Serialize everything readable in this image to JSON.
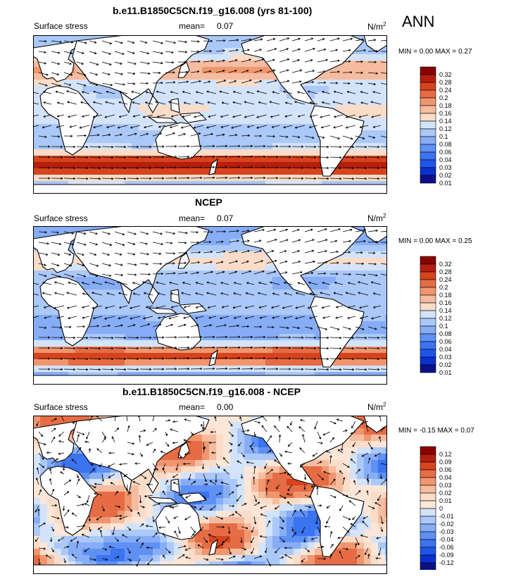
{
  "figure": {
    "season": "ANN",
    "units": "N/m",
    "units_exp": "2"
  },
  "colors": {
    "pos_scale": [
      "#0c0f86",
      "#0a2fd2",
      "#1f55ea",
      "#3b73f0",
      "#5f90f4",
      "#86adf6",
      "#aac8f8",
      "#d3e3fa",
      "#fadcc8",
      "#f6bca0",
      "#f0966f",
      "#e56c45",
      "#d5441e",
      "#b61e0e",
      "#8a0000"
    ],
    "diff_scale": [
      "#0c0f86",
      "#0a2fd2",
      "#1f55ea",
      "#3b73f0",
      "#5f90f4",
      "#86adf6",
      "#aac8f8",
      "#d3e3fa",
      "#fbe6d7",
      "#fadcc8",
      "#f6bca0",
      "#f0966f",
      "#e56c45",
      "#d5441e",
      "#b61e0e",
      "#8a0000"
    ],
    "land": "#ffffff",
    "coast": "#000000",
    "arrow": "#000000"
  },
  "panels": [
    {
      "title": "b.e11.B1850C5CN.f19_g16.008 (yrs 81-100)",
      "variable": "Surface stress",
      "mean_label": "mean=",
      "mean_value": "0.07",
      "min_label": "MIN =",
      "min_value": "0.00",
      "max_label": "MAX =",
      "max_value": "0.27",
      "colorbar_labels": [
        "0.32",
        "0.28",
        "0.24",
        "0.2",
        "0.18",
        "0.16",
        "0.14",
        "0.12",
        "0.1",
        "0.08",
        "0.06",
        "0.04",
        "0.03",
        "0.02",
        "0.01"
      ]
    },
    {
      "title": "NCEP",
      "variable": "Surface stress",
      "mean_label": "mean=",
      "mean_value": "0.07",
      "min_label": "MIN =",
      "min_value": "0.00",
      "max_label": "MAX =",
      "max_value": "0.25",
      "colorbar_labels": [
        "0.32",
        "0.28",
        "0.24",
        "0.2",
        "0.18",
        "0.16",
        "0.14",
        "0.12",
        "0.1",
        "0.08",
        "0.06",
        "0.04",
        "0.03",
        "0.02",
        "0.01"
      ]
    },
    {
      "title": "b.e11.B1850C5CN.f19_g16.008 - NCEP",
      "variable": "Surface stress",
      "mean_label": "mean=",
      "mean_value": "0.00",
      "min_label": "MIN =",
      "min_value": "-0.15",
      "max_label": "MAX =",
      "max_value": "0.07",
      "colorbar_labels": [
        "0.12",
        "0.09",
        "0.06",
        "0.04",
        "0.03",
        "0.02",
        "0.01",
        "0",
        "-0.01",
        "-0.02",
        "-0.03",
        "-0.04",
        "-0.06",
        "-0.09",
        "-0.12"
      ]
    }
  ],
  "chart_data": [
    {
      "type": "heatmap",
      "title": "b.e11.B1850C5CN.f19_g16.008 (yrs 81-100)",
      "field": "Surface stress",
      "units": "N/m2",
      "mean": 0.07,
      "min": 0.0,
      "max": 0.27,
      "xlim": [
        0,
        360
      ],
      "ylim": [
        -90,
        90
      ],
      "levels": [
        0.01,
        0.02,
        0.03,
        0.04,
        0.06,
        0.08,
        0.1,
        0.12,
        0.14,
        0.16,
        0.18,
        0.2,
        0.24,
        0.28,
        0.32
      ],
      "overlay": "wind stress vectors",
      "grid": false,
      "colorbar_position": "right"
    },
    {
      "type": "heatmap",
      "title": "NCEP",
      "field": "Surface stress",
      "units": "N/m2",
      "mean": 0.07,
      "min": 0.0,
      "max": 0.25,
      "xlim": [
        0,
        360
      ],
      "ylim": [
        -90,
        90
      ],
      "levels": [
        0.01,
        0.02,
        0.03,
        0.04,
        0.06,
        0.08,
        0.1,
        0.12,
        0.14,
        0.16,
        0.18,
        0.2,
        0.24,
        0.28,
        0.32
      ],
      "overlay": "wind stress vectors",
      "grid": false,
      "colorbar_position": "right"
    },
    {
      "type": "heatmap",
      "title": "b.e11.B1850C5CN.f19_g16.008 - NCEP",
      "field": "Surface stress",
      "units": "N/m2",
      "mean": 0.0,
      "min": -0.15,
      "max": 0.07,
      "xlim": [
        0,
        360
      ],
      "ylim": [
        -90,
        90
      ],
      "levels": [
        -0.12,
        -0.09,
        -0.06,
        -0.04,
        -0.03,
        -0.02,
        -0.01,
        0,
        0.01,
        0.02,
        0.03,
        0.04,
        0.06,
        0.09,
        0.12
      ],
      "overlay": "wind stress difference vectors",
      "grid": false,
      "colorbar_position": "right"
    }
  ]
}
